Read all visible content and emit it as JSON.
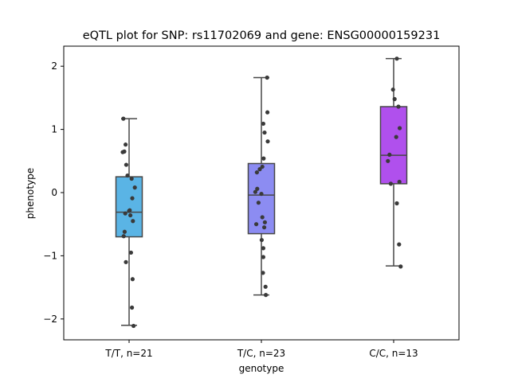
{
  "chart_data": {
    "type": "box",
    "title": "eQTL plot for SNP: rs11702069 and gene: ENSG00000159231",
    "xlabel": "genotype",
    "ylabel": "phenotype",
    "ylim": [
      -2.3,
      2.3
    ],
    "yticks": [
      -2,
      -1,
      0,
      1,
      2
    ],
    "ytick_labels": [
      "−2",
      "−1",
      "0",
      "1",
      "2"
    ],
    "grid": false,
    "groups": [
      {
        "label": "T/T, n=21",
        "color": "#5ab4e5",
        "stats": {
          "whislo": -2.1,
          "q1": -0.7,
          "median": -0.31,
          "q3": 0.25,
          "whishi": 1.17
        },
        "points": [
          [
            -0.18,
            1.17
          ],
          [
            -0.11,
            0.76
          ],
          [
            -0.15,
            0.65
          ],
          [
            -0.2,
            0.64
          ],
          [
            -0.09,
            0.44
          ],
          [
            -0.05,
            0.27
          ],
          [
            0.08,
            0.22
          ],
          [
            0.18,
            0.08
          ],
          [
            0.1,
            -0.09
          ],
          [
            0.0,
            -0.29
          ],
          [
            -0.12,
            -0.33
          ],
          [
            0.04,
            -0.36
          ],
          [
            0.12,
            -0.45
          ],
          [
            -0.14,
            -0.62
          ],
          [
            -0.17,
            -0.69
          ],
          [
            0.06,
            -0.95
          ],
          [
            -0.1,
            -1.1
          ],
          [
            0.11,
            -1.37
          ],
          [
            0.09,
            -1.82
          ],
          [
            0.14,
            -2.11
          ],
          [
            0.02,
            -0.28
          ]
        ]
      },
      {
        "label": "T/C, n=23",
        "color": "#8c8cf2",
        "stats": {
          "whislo": -1.62,
          "q1": -0.65,
          "median": -0.04,
          "q3": 0.46,
          "whishi": 1.82
        },
        "points": [
          [
            0.18,
            1.82
          ],
          [
            0.19,
            1.27
          ],
          [
            0.06,
            1.09
          ],
          [
            0.1,
            0.95
          ],
          [
            0.2,
            0.81
          ],
          [
            0.07,
            0.54
          ],
          [
            0.03,
            0.41
          ],
          [
            -0.05,
            0.37
          ],
          [
            -0.14,
            0.32
          ],
          [
            -0.13,
            0.06
          ],
          [
            -0.19,
            0.01
          ],
          [
            0.0,
            -0.02
          ],
          [
            -0.09,
            -0.16
          ],
          [
            0.03,
            -0.39
          ],
          [
            -0.16,
            -0.5
          ],
          [
            0.09,
            -0.55
          ],
          [
            0.01,
            -0.75
          ],
          [
            0.06,
            -0.88
          ],
          [
            0.06,
            -1.02
          ],
          [
            0.05,
            -1.27
          ],
          [
            0.13,
            -1.49
          ],
          [
            0.14,
            -1.62
          ],
          [
            0.11,
            -0.47
          ]
        ]
      },
      {
        "label": "C/C, n=13",
        "color": "#b050ed",
        "stats": {
          "whislo": -1.16,
          "q1": 0.14,
          "median": 0.59,
          "q3": 1.36,
          "whishi": 2.12
        },
        "points": [
          [
            0.1,
            2.12
          ],
          [
            -0.02,
            1.63
          ],
          [
            0.03,
            1.48
          ],
          [
            0.15,
            1.36
          ],
          [
            0.19,
            1.02
          ],
          [
            0.08,
            0.88
          ],
          [
            -0.13,
            0.6
          ],
          [
            -0.18,
            0.5
          ],
          [
            -0.09,
            0.14
          ],
          [
            0.18,
            0.17
          ],
          [
            0.1,
            -0.17
          ],
          [
            0.17,
            -0.82
          ],
          [
            0.22,
            -1.17
          ]
        ]
      }
    ]
  }
}
